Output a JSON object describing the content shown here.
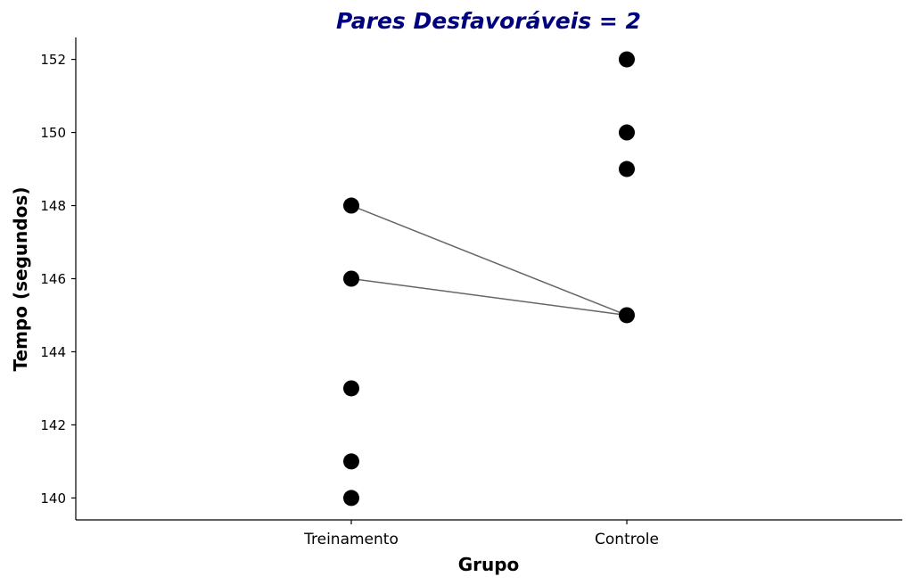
{
  "chart_data": {
    "type": "scatter",
    "title": "Pares Desfavoráveis = 2",
    "xlabel": "Grupo",
    "ylabel": "Tempo (segundos)",
    "categories": [
      "Treinamento",
      "Controle"
    ],
    "ylim": [
      139.4,
      152.6
    ],
    "yticks": [
      140,
      142,
      144,
      146,
      148,
      150,
      152
    ],
    "grid": false,
    "series": [
      {
        "category": "Treinamento",
        "values": [
          148,
          146,
          143,
          141,
          140
        ]
      },
      {
        "category": "Controle",
        "values": [
          152,
          150,
          149,
          145
        ]
      }
    ],
    "pairs": [
      {
        "from": {
          "category": "Treinamento",
          "value": 148
        },
        "to": {
          "category": "Controle",
          "value": 145
        }
      },
      {
        "from": {
          "category": "Treinamento",
          "value": 146
        },
        "to": {
          "category": "Controle",
          "value": 145
        }
      }
    ],
    "colors": {
      "title": "#00007f",
      "points": "#000000",
      "lines": "#666666"
    }
  }
}
